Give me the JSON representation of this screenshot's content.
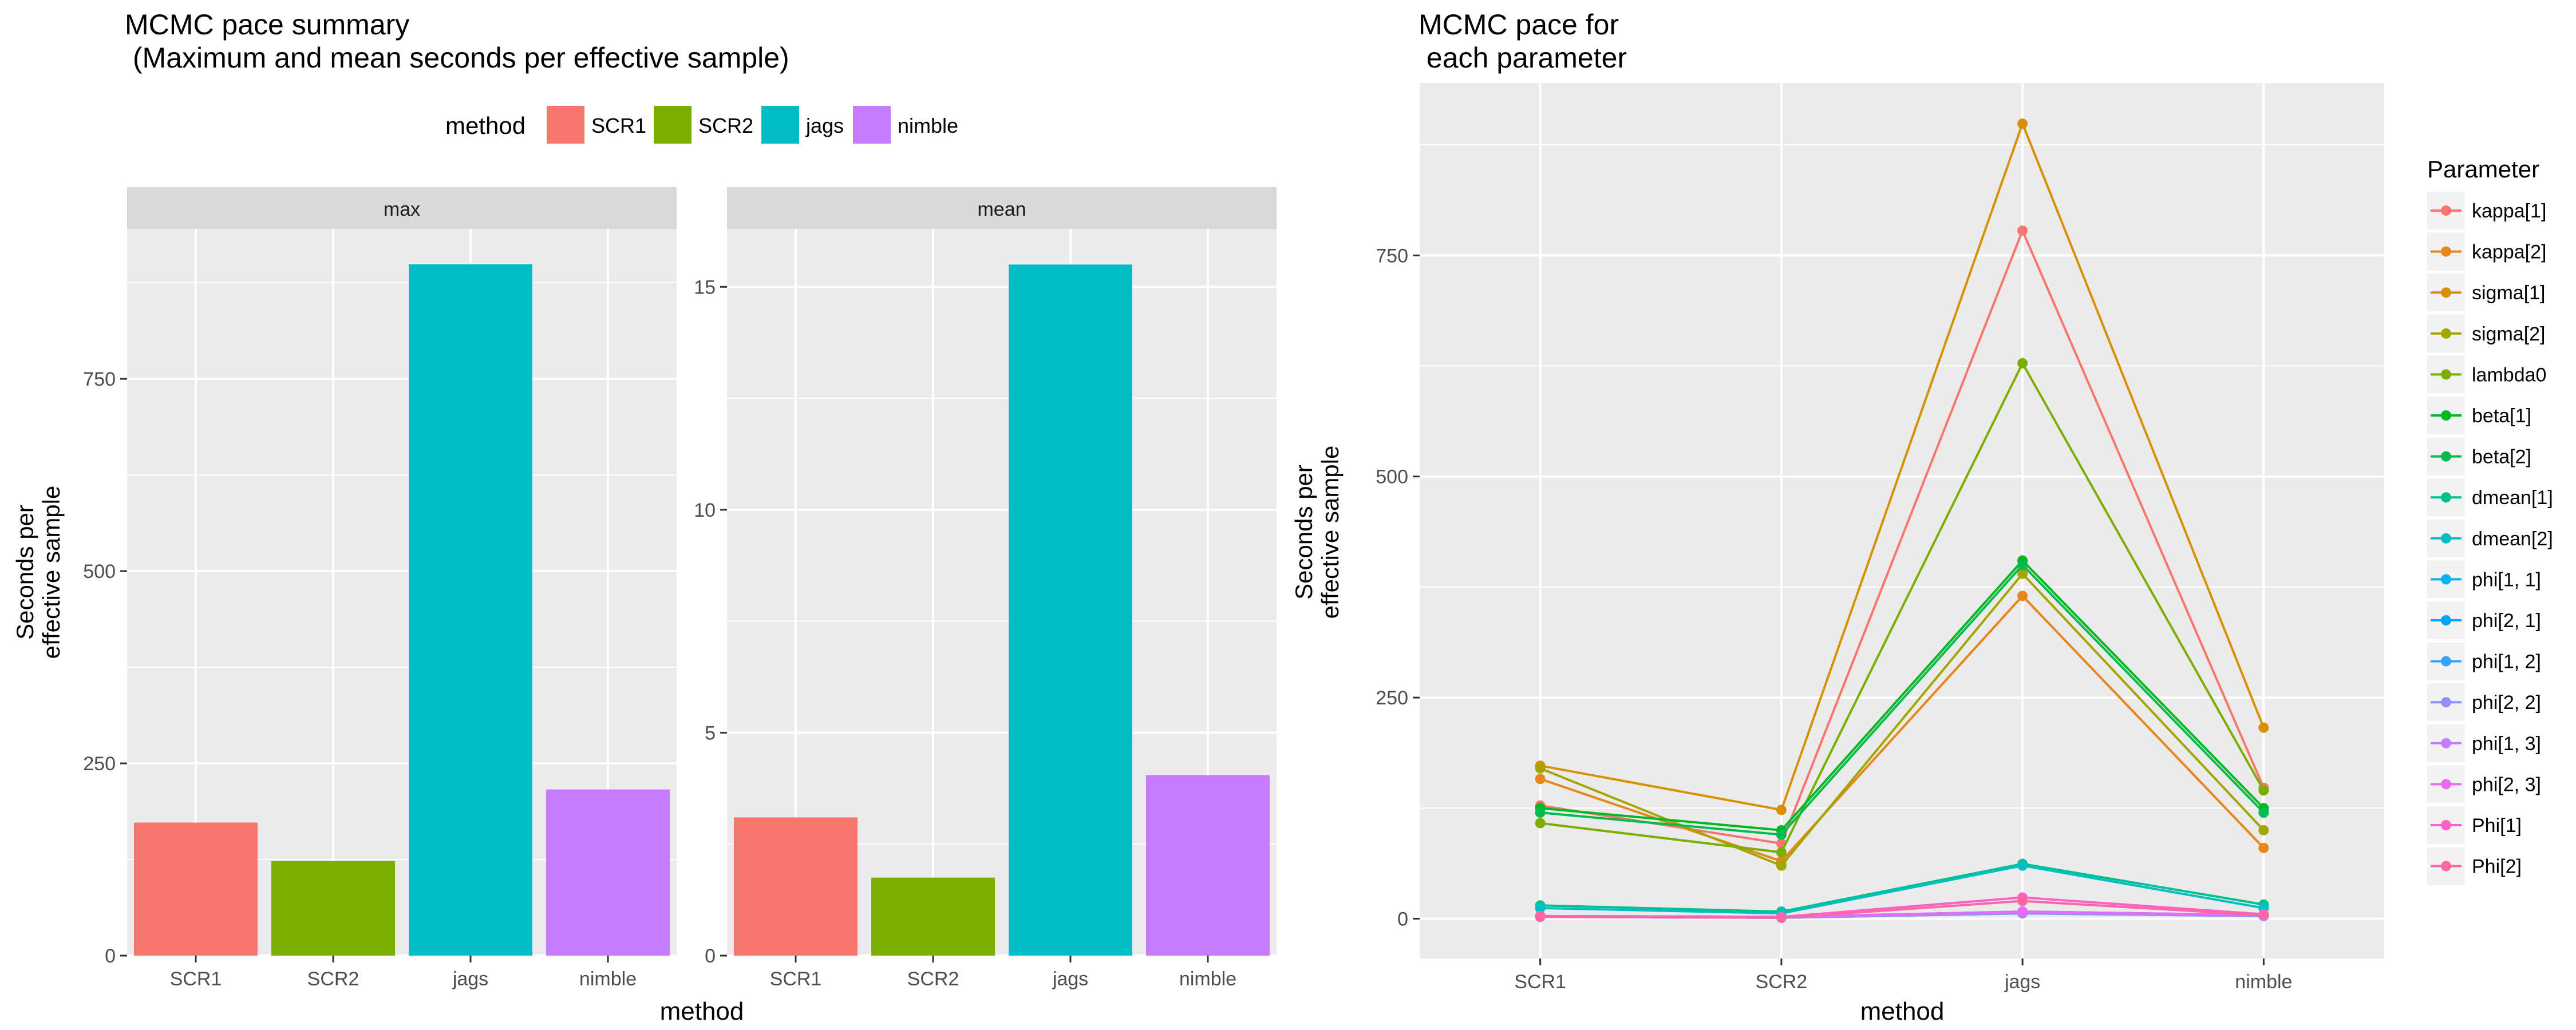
{
  "left": {
    "title_line1": "MCMC pace summary",
    "title_line2": " (Maximum and mean seconds per effective sample)",
    "legend_title": "method",
    "ylabel_line1": "Seconds per",
    "ylabel_line2": "effective sample",
    "xlabel": "method"
  },
  "right": {
    "title_line1": "MCMC pace for",
    "title_line2": " each parameter",
    "legend_title": "Parameter",
    "ylabel_line1": "Seconds per",
    "ylabel_line2": "effective sample",
    "xlabel": "method"
  },
  "colors": {
    "SCR1": "#F8766D",
    "SCR2": "#7CAE00",
    "jags": "#00BFC4",
    "nimble": "#C77CFF",
    "panel_bg": "#EBEBEB",
    "strip_bg": "#D9D9D9",
    "grid": "#FFFFFF"
  },
  "chart_data": [
    {
      "type": "bar",
      "facet": "max",
      "categories": [
        "SCR1",
        "SCR2",
        "jags",
        "nimble"
      ],
      "values": [
        173,
        123,
        899,
        216
      ],
      "ylim": [
        0,
        945
      ],
      "yticks": [
        0,
        250,
        500,
        750
      ],
      "xlabel": "method"
    },
    {
      "type": "bar",
      "facet": "mean",
      "categories": [
        "SCR1",
        "SCR2",
        "jags",
        "nimble"
      ],
      "values": [
        3.1,
        1.75,
        15.5,
        4.05
      ],
      "ylim": [
        0,
        16.3
      ],
      "yticks": [
        0,
        5,
        10,
        15
      ],
      "xlabel": "method"
    },
    {
      "type": "line",
      "categories": [
        "SCR1",
        "SCR2",
        "jags",
        "nimble"
      ],
      "ylim": [
        -45,
        945
      ],
      "yticks": [
        0,
        250,
        500,
        750
      ],
      "xlabel": "method",
      "series": [
        {
          "name": "kappa[1]",
          "color": "#F8766D",
          "values": [
            128,
            85,
            778,
            148
          ]
        },
        {
          "name": "kappa[2]",
          "color": "#E7861B",
          "values": [
            158,
            65,
            365,
            80
          ]
        },
        {
          "name": "sigma[1]",
          "color": "#D89000",
          "values": [
            173,
            123,
            899,
            216
          ]
        },
        {
          "name": "sigma[2]",
          "color": "#A3A500",
          "values": [
            170,
            60,
            390,
            100
          ]
        },
        {
          "name": "lambda0",
          "color": "#7CAE00",
          "values": [
            108,
            75,
            628,
            145
          ]
        },
        {
          "name": "beta[1]",
          "color": "#00B81F",
          "values": [
            125,
            100,
            405,
            125
          ]
        },
        {
          "name": "beta[2]",
          "color": "#00BB4E",
          "values": [
            120,
            95,
            400,
            120
          ]
        },
        {
          "name": "dmean[1]",
          "color": "#00C08B",
          "values": [
            15,
            8,
            62,
            16
          ]
        },
        {
          "name": "dmean[2]",
          "color": "#00BFC4",
          "values": [
            12,
            6,
            60,
            12
          ]
        },
        {
          "name": "phi[1, 1]",
          "color": "#00B4F0",
          "values": [
            3,
            2,
            8,
            4
          ]
        },
        {
          "name": "phi[2, 1]",
          "color": "#00A5FF",
          "values": [
            3,
            2,
            7,
            3
          ]
        },
        {
          "name": "phi[1, 2]",
          "color": "#35A2FF",
          "values": [
            2,
            1,
            6,
            3
          ]
        },
        {
          "name": "phi[2, 2]",
          "color": "#9590FF",
          "values": [
            2,
            1,
            6,
            3
          ]
        },
        {
          "name": "phi[1, 3]",
          "color": "#C77CFF",
          "values": [
            3,
            2,
            8,
            4
          ]
        },
        {
          "name": "phi[2, 3]",
          "color": "#E76BF3",
          "values": [
            3,
            2,
            8,
            4
          ]
        },
        {
          "name": "Phi[1]",
          "color": "#FF61C9",
          "values": [
            3,
            2,
            24,
            5
          ]
        },
        {
          "name": "Phi[2]",
          "color": "#FF67A4",
          "values": [
            2,
            1,
            20,
            4
          ]
        }
      ]
    }
  ]
}
